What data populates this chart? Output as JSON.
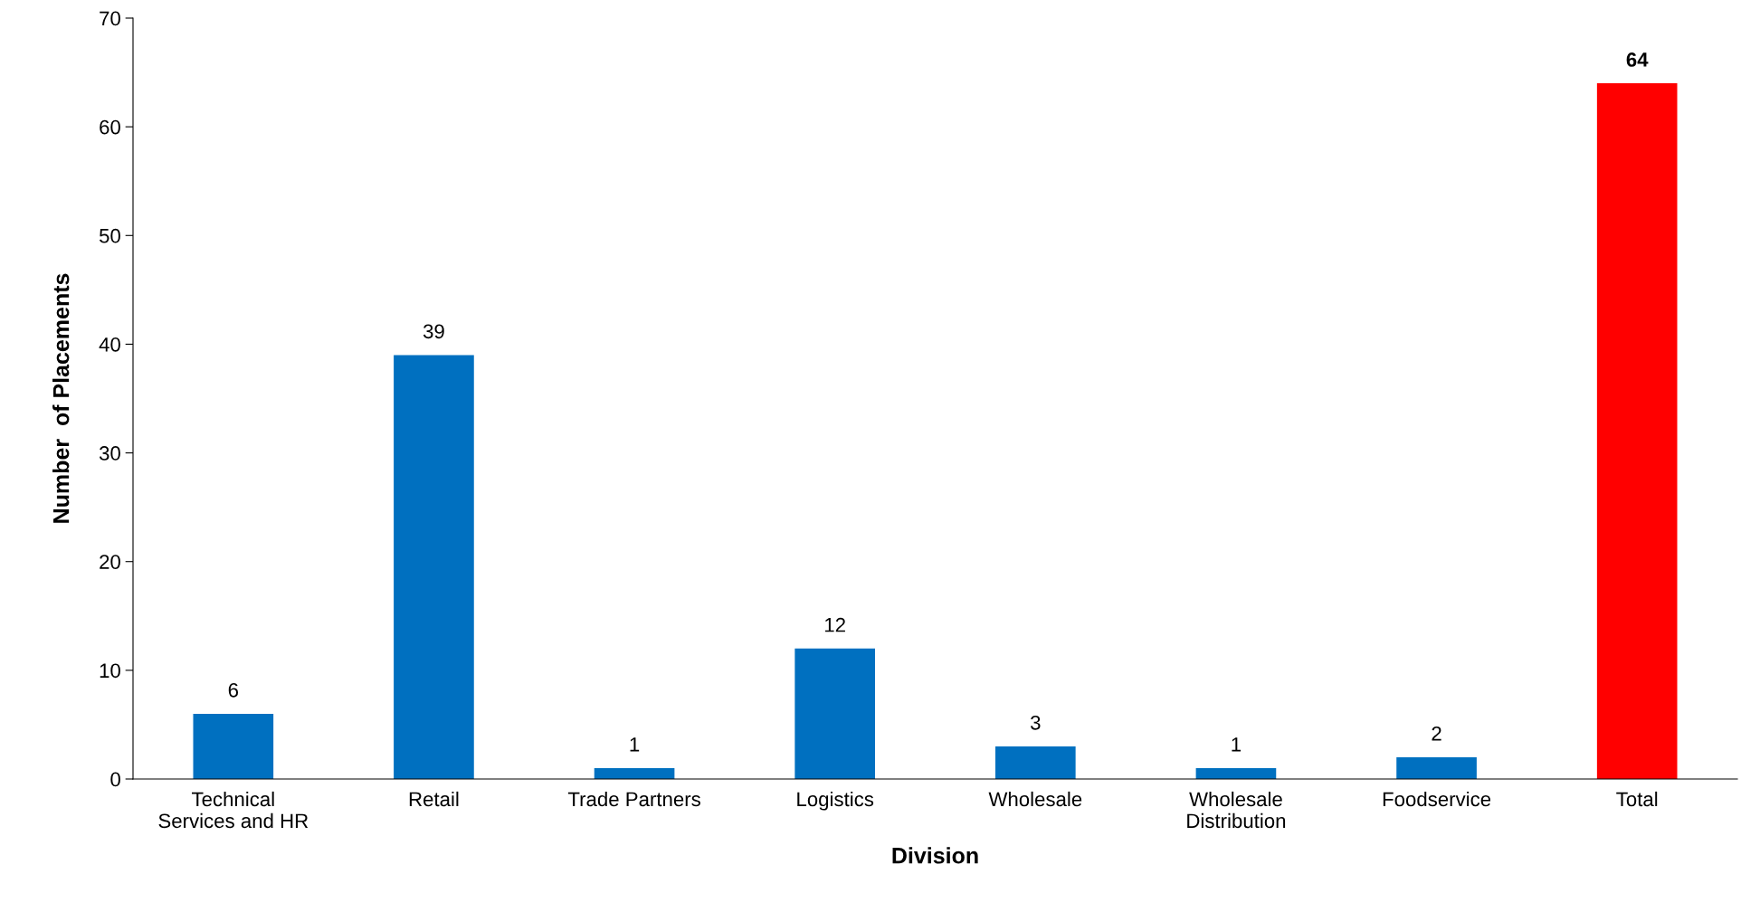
{
  "chart_data": {
    "type": "bar",
    "xlabel": "Division",
    "ylabel": "Number  of Placements",
    "categories": [
      "Technical\nServices and HR",
      "Retail",
      "Trade Partners",
      "Logistics",
      "Wholesale",
      "Wholesale\nDistribution",
      "Foodservice",
      "Total"
    ],
    "values": [
      6,
      39,
      1,
      12,
      3,
      1,
      2,
      64
    ],
    "colors": [
      "#0070c0",
      "#0070c0",
      "#0070c0",
      "#0070c0",
      "#0070c0",
      "#0070c0",
      "#0070c0",
      "#ff0000"
    ],
    "ylim": [
      0,
      70
    ],
    "yticks": [
      0,
      10,
      20,
      30,
      40,
      50,
      60,
      70
    ],
    "grid": false,
    "legend": false,
    "data_labels": true
  }
}
